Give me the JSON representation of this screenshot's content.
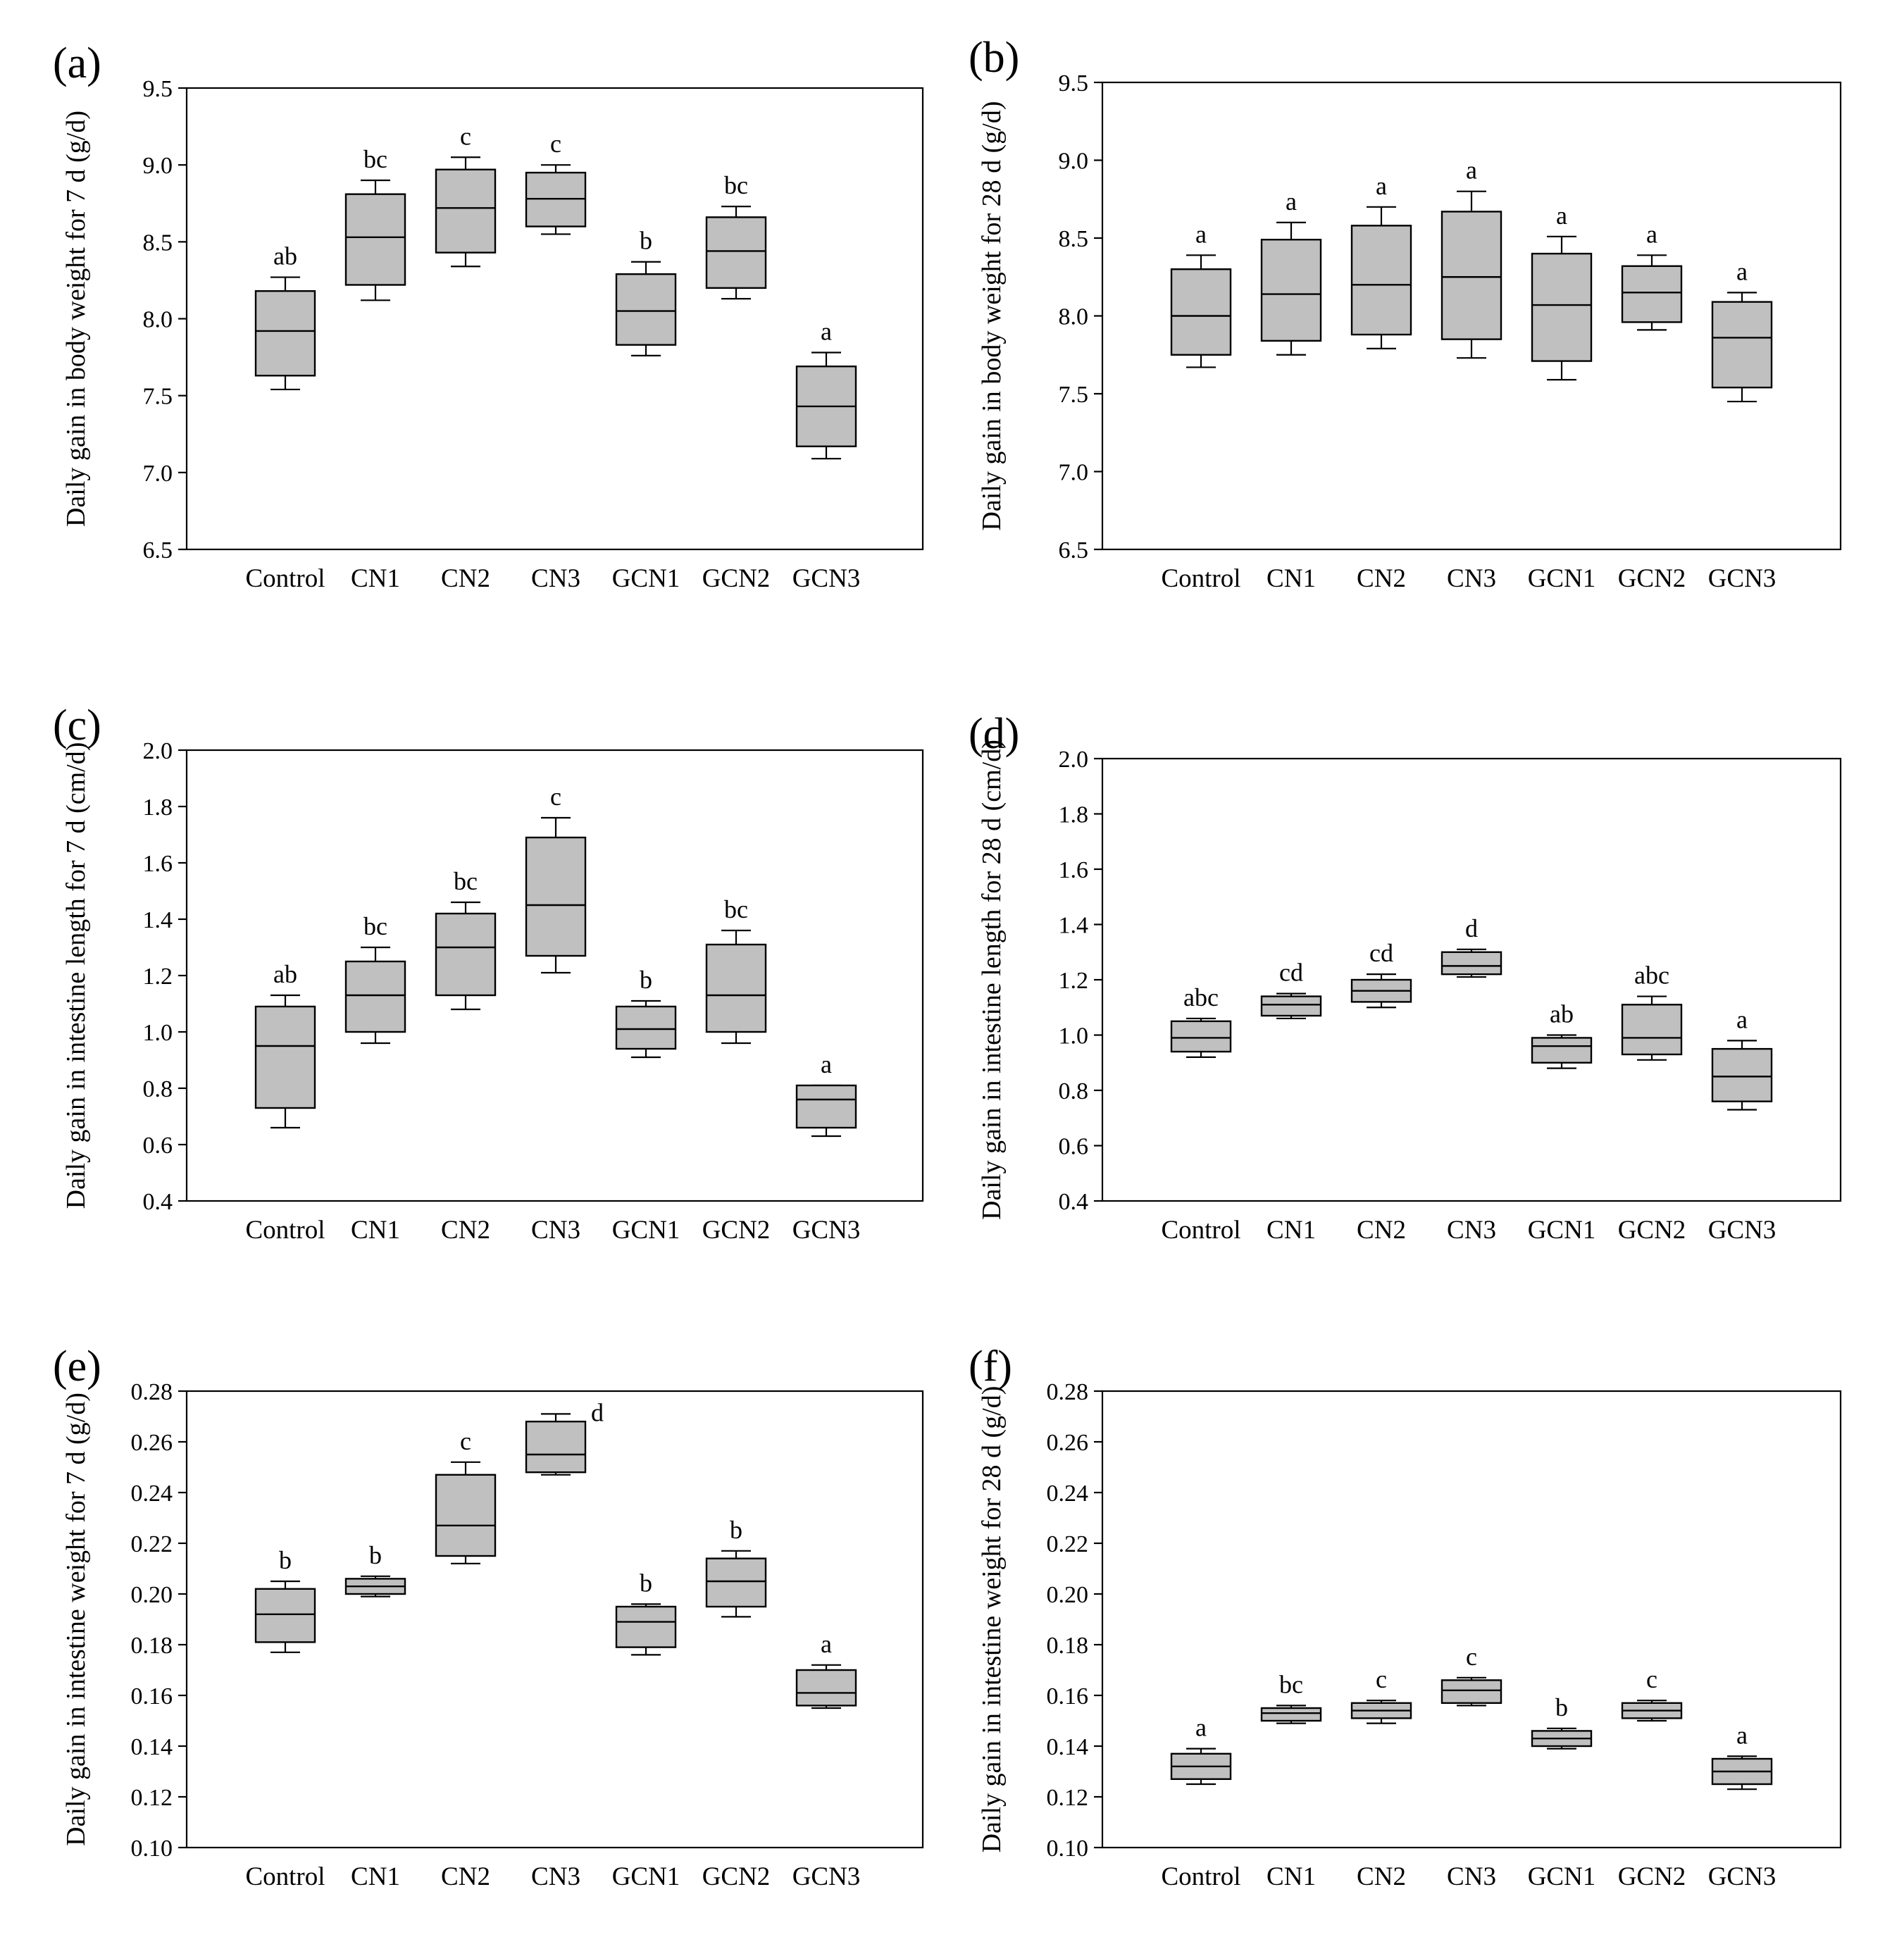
{
  "categories": [
    "Control",
    "CN1",
    "CN2",
    "CN3",
    "GCN1",
    "GCN2",
    "GCN3"
  ],
  "colors": {
    "box_fill": "#c0c0c0",
    "stroke": "#000000",
    "background": "#ffffff"
  },
  "chart_data": [
    {
      "type": "box",
      "panel_label": "(a)",
      "ylabel": "Daily gain in body weight for 7 d (g/d)",
      "ylim": [
        6.5,
        9.5
      ],
      "yticks": [
        6.5,
        7.0,
        7.5,
        8.0,
        8.5,
        9.0,
        9.5
      ],
      "decimals": 1,
      "series": [
        {
          "category": "Control",
          "min": 7.54,
          "q1": 7.63,
          "median": 7.92,
          "q3": 8.18,
          "max": 8.27,
          "letter": "ab"
        },
        {
          "category": "CN1",
          "min": 8.12,
          "q1": 8.22,
          "median": 8.53,
          "q3": 8.81,
          "max": 8.9,
          "letter": "bc"
        },
        {
          "category": "CN2",
          "min": 8.34,
          "q1": 8.43,
          "median": 8.72,
          "q3": 8.97,
          "max": 9.05,
          "letter": "c"
        },
        {
          "category": "CN3",
          "min": 8.55,
          "q1": 8.6,
          "median": 8.78,
          "q3": 8.95,
          "max": 9.0,
          "letter": "c"
        },
        {
          "category": "GCN1",
          "min": 7.76,
          "q1": 7.83,
          "median": 8.05,
          "q3": 8.29,
          "max": 8.37,
          "letter": "b"
        },
        {
          "category": "GCN2",
          "min": 8.13,
          "q1": 8.2,
          "median": 8.44,
          "q3": 8.66,
          "max": 8.73,
          "letter": "bc"
        },
        {
          "category": "GCN3",
          "min": 7.09,
          "q1": 7.17,
          "median": 7.43,
          "q3": 7.69,
          "max": 7.78,
          "letter": "a"
        }
      ]
    },
    {
      "type": "box",
      "panel_label": "(b)",
      "ylabel": "Daily gain in body weight for 28 d (g/d)",
      "ylim": [
        6.5,
        9.5
      ],
      "yticks": [
        6.5,
        7.0,
        7.5,
        8.0,
        8.5,
        9.0,
        9.5
      ],
      "decimals": 1,
      "series": [
        {
          "category": "Control",
          "min": 7.67,
          "q1": 7.75,
          "median": 8.0,
          "q3": 8.3,
          "max": 8.39,
          "letter": "a"
        },
        {
          "category": "CN1",
          "min": 7.75,
          "q1": 7.84,
          "median": 8.14,
          "q3": 8.49,
          "max": 8.6,
          "letter": "a"
        },
        {
          "category": "CN2",
          "min": 7.79,
          "q1": 7.88,
          "median": 8.2,
          "q3": 8.58,
          "max": 8.7,
          "letter": "a"
        },
        {
          "category": "CN3",
          "min": 7.73,
          "q1": 7.85,
          "median": 8.25,
          "q3": 8.67,
          "max": 8.8,
          "letter": "a"
        },
        {
          "category": "GCN1",
          "min": 7.59,
          "q1": 7.71,
          "median": 8.07,
          "q3": 8.4,
          "max": 8.51,
          "letter": "a"
        },
        {
          "category": "GCN2",
          "min": 7.91,
          "q1": 7.96,
          "median": 8.15,
          "q3": 8.32,
          "max": 8.39,
          "letter": "a"
        },
        {
          "category": "GCN3",
          "min": 7.45,
          "q1": 7.54,
          "median": 7.86,
          "q3": 8.09,
          "max": 8.15,
          "letter": "a"
        }
      ]
    },
    {
      "type": "box",
      "panel_label": "(c)",
      "ylabel": "Daily gain in intestine length for 7 d (cm/d)",
      "ylim": [
        0.4,
        2.0
      ],
      "yticks": [
        0.4,
        0.6,
        0.8,
        1.0,
        1.2,
        1.4,
        1.6,
        1.8,
        2.0
      ],
      "decimals": 1,
      "series": [
        {
          "category": "Control",
          "min": 0.66,
          "q1": 0.73,
          "median": 0.95,
          "q3": 1.09,
          "max": 1.13,
          "letter": "ab"
        },
        {
          "category": "CN1",
          "min": 0.96,
          "q1": 1.0,
          "median": 1.13,
          "q3": 1.25,
          "max": 1.3,
          "letter": "bc"
        },
        {
          "category": "CN2",
          "min": 1.08,
          "q1": 1.13,
          "median": 1.3,
          "q3": 1.42,
          "max": 1.46,
          "letter": "bc"
        },
        {
          "category": "CN3",
          "min": 1.21,
          "q1": 1.27,
          "median": 1.45,
          "q3": 1.69,
          "max": 1.76,
          "letter": "c"
        },
        {
          "category": "GCN1",
          "min": 0.91,
          "q1": 0.94,
          "median": 1.01,
          "q3": 1.09,
          "max": 1.11,
          "letter": "b"
        },
        {
          "category": "GCN2",
          "min": 0.96,
          "q1": 1.0,
          "median": 1.13,
          "q3": 1.31,
          "max": 1.36,
          "letter": "bc"
        },
        {
          "category": "GCN3",
          "min": 0.63,
          "q1": 0.66,
          "median": 0.76,
          "q3": 0.81,
          "max": 0.81,
          "letter": "a"
        }
      ]
    },
    {
      "type": "box",
      "panel_label": "(d)",
      "ylabel": "Daily gain in intestine length for 28 d (cm/d)",
      "ylim": [
        0.4,
        2.0
      ],
      "yticks": [
        0.4,
        0.6,
        0.8,
        1.0,
        1.2,
        1.4,
        1.6,
        1.8,
        2.0
      ],
      "decimals": 1,
      "series": [
        {
          "category": "Control",
          "min": 0.92,
          "q1": 0.94,
          "median": 0.99,
          "q3": 1.05,
          "max": 1.06,
          "letter": "abc"
        },
        {
          "category": "CN1",
          "min": 1.06,
          "q1": 1.07,
          "median": 1.11,
          "q3": 1.14,
          "max": 1.15,
          "letter": "cd"
        },
        {
          "category": "CN2",
          "min": 1.1,
          "q1": 1.12,
          "median": 1.16,
          "q3": 1.2,
          "max": 1.22,
          "letter": "cd"
        },
        {
          "category": "CN3",
          "min": 1.21,
          "q1": 1.22,
          "median": 1.25,
          "q3": 1.3,
          "max": 1.31,
          "letter": "d"
        },
        {
          "category": "GCN1",
          "min": 0.88,
          "q1": 0.9,
          "median": 0.96,
          "q3": 0.99,
          "max": 1.0,
          "letter": "ab"
        },
        {
          "category": "GCN2",
          "min": 0.91,
          "q1": 0.93,
          "median": 0.99,
          "q3": 1.11,
          "max": 1.14,
          "letter": "abc"
        },
        {
          "category": "GCN3",
          "min": 0.73,
          "q1": 0.76,
          "median": 0.85,
          "q3": 0.95,
          "max": 0.98,
          "letter": "a"
        }
      ]
    },
    {
      "type": "box",
      "panel_label": "(e)",
      "ylabel": "Daily gain in intestine weight for 7 d (g/d)",
      "ylim": [
        0.1,
        0.28
      ],
      "yticks": [
        0.1,
        0.12,
        0.14,
        0.16,
        0.18,
        0.2,
        0.22,
        0.24,
        0.26,
        0.28
      ],
      "decimals": 2,
      "series": [
        {
          "category": "Control",
          "min": 0.177,
          "q1": 0.181,
          "median": 0.192,
          "q3": 0.202,
          "max": 0.205,
          "letter": "b"
        },
        {
          "category": "CN1",
          "min": 0.199,
          "q1": 0.2,
          "median": 0.203,
          "q3": 0.206,
          "max": 0.207,
          "letter": "b"
        },
        {
          "category": "CN2",
          "min": 0.212,
          "q1": 0.215,
          "median": 0.227,
          "q3": 0.247,
          "max": 0.252,
          "letter": "c"
        },
        {
          "category": "CN3",
          "min": 0.247,
          "q1": 0.248,
          "median": 0.255,
          "q3": 0.268,
          "max": 0.271,
          "letter": "d"
        },
        {
          "category": "GCN1",
          "min": 0.176,
          "q1": 0.179,
          "median": 0.189,
          "q3": 0.195,
          "max": 0.196,
          "letter": "b"
        },
        {
          "category": "GCN2",
          "min": 0.191,
          "q1": 0.195,
          "median": 0.205,
          "q3": 0.214,
          "max": 0.217,
          "letter": "b"
        },
        {
          "category": "GCN3",
          "min": 0.155,
          "q1": 0.156,
          "median": 0.161,
          "q3": 0.17,
          "max": 0.172,
          "letter": "a"
        }
      ]
    },
    {
      "type": "box",
      "panel_label": "(f)",
      "ylabel": "Daily gain in intestine weight for 28 d (g/d)",
      "ylim": [
        0.1,
        0.28
      ],
      "yticks": [
        0.1,
        0.12,
        0.14,
        0.16,
        0.18,
        0.2,
        0.22,
        0.24,
        0.26,
        0.28
      ],
      "decimals": 2,
      "series": [
        {
          "category": "Control",
          "min": 0.125,
          "q1": 0.127,
          "median": 0.132,
          "q3": 0.137,
          "max": 0.139,
          "letter": "a"
        },
        {
          "category": "CN1",
          "min": 0.149,
          "q1": 0.15,
          "median": 0.153,
          "q3": 0.155,
          "max": 0.156,
          "letter": "bc"
        },
        {
          "category": "CN2",
          "min": 0.149,
          "q1": 0.151,
          "median": 0.154,
          "q3": 0.157,
          "max": 0.158,
          "letter": "c"
        },
        {
          "category": "CN3",
          "min": 0.156,
          "q1": 0.157,
          "median": 0.162,
          "q3": 0.166,
          "max": 0.167,
          "letter": "c"
        },
        {
          "category": "GCN1",
          "min": 0.139,
          "q1": 0.14,
          "median": 0.143,
          "q3": 0.146,
          "max": 0.147,
          "letter": "b"
        },
        {
          "category": "GCN2",
          "min": 0.15,
          "q1": 0.151,
          "median": 0.154,
          "q3": 0.157,
          "max": 0.158,
          "letter": "c"
        },
        {
          "category": "GCN3",
          "min": 0.123,
          "q1": 0.125,
          "median": 0.13,
          "q3": 0.135,
          "max": 0.136,
          "letter": "a"
        }
      ]
    }
  ]
}
